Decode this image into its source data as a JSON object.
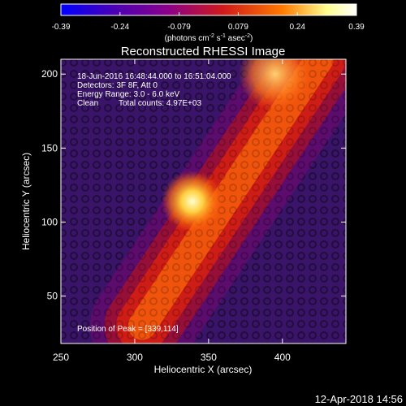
{
  "chart_data": {
    "type": "heatmap",
    "title": "Reconstructed RHESSI Image",
    "xlabel": "Heliocentric X (arcsec)",
    "ylabel": "Heliocentric Y (arcsec)",
    "xlim": [
      250,
      443
    ],
    "ylim": [
      18,
      210
    ],
    "xticks": [
      250,
      300,
      350,
      400
    ],
    "yticks": [
      50,
      100,
      150,
      200
    ],
    "colorbar": {
      "range": [
        -0.39,
        0.39
      ],
      "ticks": [
        "-0.39",
        "-0.24",
        "-0.079",
        "0.079",
        "0.24",
        "0.39"
      ],
      "units_prefix": "(photons cm",
      "units_sup1": "-2",
      "units_mid1": " s",
      "units_sup2": "-1",
      "units_mid2": " asec",
      "units_sup3": "-2",
      "units_suffix": ")",
      "colors": [
        "#0000ff",
        "#4a00b4",
        "#8a008a",
        "#d01a1a",
        "#ff7a00",
        "#ffff90",
        "#ffffff"
      ]
    },
    "annotations": {
      "time_range": "18-Jun-2016 16:48:44.000 to 16:51:04.000",
      "detectors": "Detectors: 3F 8F, Att 0",
      "energy": "Energy Range: 3.0 - 6.0 keV",
      "clean": "Clean",
      "counts": "Total counts: 4.97E+03",
      "peak_label": "Position of Peak = [339,114]"
    },
    "peak": {
      "x": 339,
      "y": 114
    },
    "source_ridge": {
      "start": [
        305,
        30
      ],
      "end": [
        425,
        210
      ],
      "width_arcsec": 32
    }
  },
  "footer": {
    "timestamp": "12-Apr-2018 14:56"
  }
}
